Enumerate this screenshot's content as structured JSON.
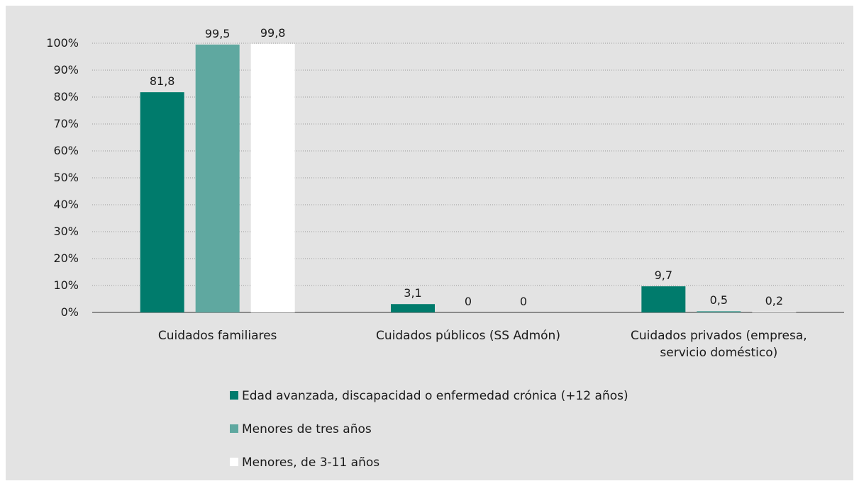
{
  "chart_data": {
    "type": "bar",
    "categories": [
      [
        "Cuidados familiares"
      ],
      [
        "Cuidados públicos (SS Admón)"
      ],
      [
        "Cuidados privados (empresa,",
        "servicio doméstico)"
      ]
    ],
    "series": [
      {
        "name": "Edad avanzada, discapacidad o enfermedad crónica (+12 años)",
        "color": "#007b6c",
        "values": [
          81.8,
          3.1,
          9.7
        ],
        "labels": [
          "81,8",
          "3,1",
          "9,7"
        ]
      },
      {
        "name": "Menores de tres años",
        "color": "#5fa8a0",
        "values": [
          99.5,
          0,
          0.5
        ],
        "labels": [
          "99,5",
          "0",
          "0,5"
        ]
      },
      {
        "name": "Menores, de 3-11 años",
        "color": "#ffffff",
        "values": [
          99.8,
          0,
          0.2
        ],
        "labels": [
          "99,8",
          "0",
          "0,2"
        ]
      }
    ],
    "y_ticks": [
      "0%",
      "10%",
      "20%",
      "30%",
      "40%",
      "50%",
      "60%",
      "70%",
      "80%",
      "90%",
      "100%"
    ],
    "ylim": [
      0,
      100
    ],
    "grid": true,
    "legend_position": "bottom"
  }
}
